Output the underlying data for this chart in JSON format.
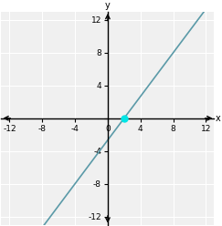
{
  "xlim": [
    -13,
    13
  ],
  "ylim": [
    -13,
    13
  ],
  "plot_xlim": [
    -12,
    12
  ],
  "plot_ylim": [
    -12,
    12
  ],
  "xticks": [
    -12,
    -8,
    -4,
    0,
    4,
    8,
    12
  ],
  "yticks": [
    -12,
    -8,
    -4,
    0,
    4,
    8,
    12
  ],
  "line_color": "#5b9aa8",
  "slope": 1.3333333333,
  "intercept": -2.6666666667,
  "highlight_point": [
    2,
    0
  ],
  "highlight_color": "#00e5e5",
  "xlabel": "x",
  "ylabel": "y",
  "background_color": "#ffffff",
  "plot_bg_color": "#f0f0f0",
  "grid_color": "#ffffff",
  "figsize": [
    2.43,
    2.48
  ],
  "dpi": 100,
  "tick_fontsize": 6.5
}
